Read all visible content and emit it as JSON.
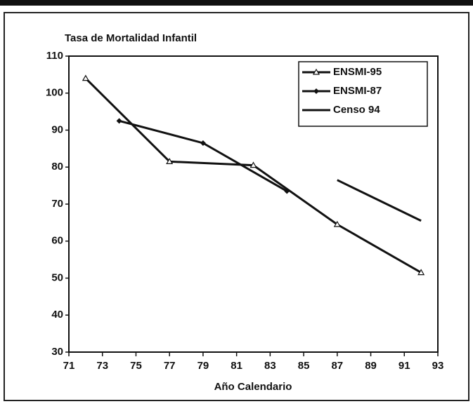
{
  "chart_data": {
    "type": "line",
    "title": "Tasa de Mortalidad Infantil",
    "x_label": "Año Calendario",
    "xlim": [
      71,
      93
    ],
    "xticks": [
      71,
      73,
      75,
      77,
      79,
      81,
      83,
      85,
      87,
      89,
      91,
      93
    ],
    "ylim": [
      30,
      110
    ],
    "yticks": [
      30,
      40,
      50,
      60,
      70,
      80,
      90,
      100,
      110
    ],
    "legend": "upper right",
    "series": [
      {
        "name": "ENSMI-95",
        "color": "#111111",
        "marker": "triangle",
        "x": [
          72,
          77,
          82,
          87,
          92
        ],
        "values": [
          104,
          81.5,
          80.5,
          64.5,
          51.5
        ]
      },
      {
        "name": "ENSMI-87",
        "color": "#111111",
        "marker": "diamond",
        "x": [
          74,
          79,
          84
        ],
        "values": [
          92.5,
          86.5,
          73.5
        ]
      },
      {
        "name": "Censo 94",
        "color": "#111111",
        "marker": "none",
        "x": [
          87,
          92
        ],
        "values": [
          76.5,
          65.5
        ]
      }
    ]
  }
}
